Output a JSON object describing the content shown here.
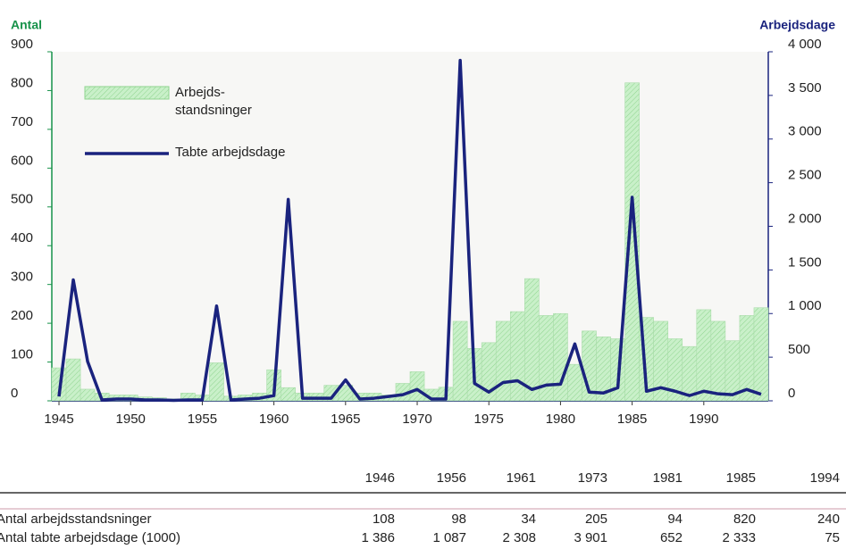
{
  "chart_data": {
    "type": "bar-line",
    "y_label": "Antal",
    "y2_label": "Arbejdsdage",
    "x": [
      1945,
      1946,
      1947,
      1948,
      1949,
      1950,
      1951,
      1952,
      1953,
      1954,
      1955,
      1956,
      1957,
      1958,
      1959,
      1960,
      1961,
      1962,
      1963,
      1964,
      1965,
      1966,
      1967,
      1968,
      1969,
      1970,
      1971,
      1972,
      1973,
      1974,
      1975,
      1976,
      1977,
      1978,
      1979,
      1980,
      1981,
      1982,
      1983,
      1984,
      1985,
      1986,
      1987,
      1988,
      1989,
      1990,
      1991,
      1992,
      1993,
      1994
    ],
    "xlim": [
      1944.5,
      1994.5
    ],
    "xticks": [
      1945,
      1950,
      1955,
      1960,
      1965,
      1970,
      1975,
      1980,
      1985,
      1990
    ],
    "ylim": [
      0,
      900
    ],
    "yticks": [
      0,
      100,
      200,
      300,
      400,
      500,
      600,
      700,
      800,
      900
    ],
    "y2lim": [
      0,
      4000
    ],
    "y2ticks": [
      0,
      500,
      {
        "value": 1000,
        "label": "1 000"
      },
      {
        "value": 1500,
        "label": "1 500"
      },
      {
        "value": 2000,
        "label": "2 000"
      },
      {
        "value": 2500,
        "label": "2 500"
      },
      {
        "value": 3000,
        "label": "3 000"
      },
      {
        "value": 3500,
        "label": "3 500"
      },
      {
        "value": 4000,
        "label": "4 000"
      }
    ],
    "series": [
      {
        "name": "Arbejds-\nstandsninger",
        "color": "#c9f0c9",
        "values": [
          85,
          108,
          30,
          20,
          15,
          15,
          10,
          8,
          5,
          20,
          15,
          98,
          12,
          15,
          20,
          80,
          34,
          20,
          20,
          40,
          40,
          20,
          20,
          15,
          45,
          75,
          30,
          35,
          205,
          135,
          150,
          205,
          230,
          315,
          220,
          225,
          94,
          180,
          165,
          160,
          820,
          215,
          205,
          160,
          140,
          235,
          205,
          155,
          220,
          240
        ]
      },
      {
        "name": "Tabte arbejdsdage",
        "color": "#1a237e",
        "axis": "y2",
        "values": [
          50,
          1386,
          450,
          10,
          20,
          20,
          10,
          10,
          5,
          10,
          10,
          1087,
          10,
          20,
          30,
          60,
          2308,
          30,
          30,
          30,
          240,
          20,
          30,
          50,
          70,
          130,
          20,
          20,
          3901,
          200,
          100,
          210,
          230,
          130,
          180,
          190,
          652,
          100,
          90,
          150,
          2333,
          110,
          150,
          110,
          60,
          110,
          80,
          70,
          130,
          75
        ]
      }
    ]
  },
  "table": {
    "columns": [
      "1946",
      "1956",
      "1961",
      "1973",
      "1981",
      "1985",
      "1994"
    ],
    "rows": [
      [
        "Antal arbejdsstandsninger",
        "108",
        "98",
        "34",
        "205",
        "94",
        "820",
        "240"
      ],
      [
        "Antal tabte arbejdsdage (1000)",
        "1 386",
        "1 087",
        "2 308",
        "3 901",
        "652",
        "2 333",
        "75"
      ]
    ]
  }
}
